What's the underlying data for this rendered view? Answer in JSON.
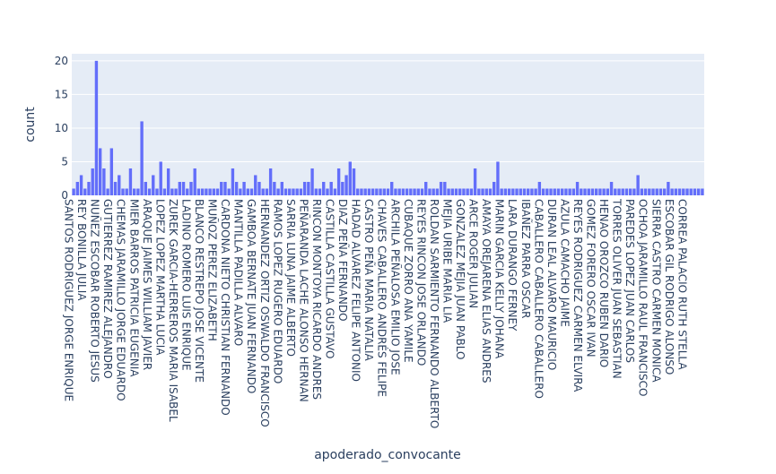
{
  "chart_data": {
    "type": "bar",
    "xlabel": "apoderado_convocante",
    "ylabel": "count",
    "ylim": [
      0,
      21.05
    ],
    "yticks": [
      0,
      5,
      10,
      15,
      20
    ],
    "grid": true,
    "bar_color": "#636efa",
    "plot_bg": "#e5ecf6",
    "tick_labels": [
      "SANTOS  RODRIGUEZ JORGE ENRIQUE",
      "REY BONILLA JULIA",
      "NUÑEZ ESCOBAR ROBERTO JESUS",
      "GUTIERREZ RAMIREZ ALEJANDRO",
      "CHEMAS JARAMILLO JORGE EDUARDO",
      "MIER BARROS PATRICIA EUGENIA",
      "ARAQUE JAIMES WILLIAM JAVIER",
      "LOPEZ LOPEZ MARTHA LUCIA",
      "ZUREK GARCIA-HERREROS MARIA ISABEL",
      "LADINO ROMERO LUIS ENRIQUE",
      "BLANCO RESTREPO JOSE VICENTE",
      "MUÑOZ PEREZ ELIZABETH",
      "CARDONA NIETO CHRISTIAN FERNANDO",
      "MANTILLA PADILLA ALVARO",
      "GAMBOA BERNATE JUAN FERNANDO",
      "HERNANDEZ ORTIZ OSWALDO FRANCISCO",
      "RAMOS LOPEZ RUGERO EDUARDO",
      "SARRIA LUNA JAIME ALBERTO",
      "PEÑARANDA LACHE ALONSO HERNAN",
      "RINCON MONTOYA RICARDO ANDRES",
      "CASTILLA CASTILLA GUSTAVO",
      "DIAZ PEÑA FERNANDO",
      "HADAD ALVAREZ FELIPE ANTONIO",
      "CASTRO PEÑA MARIA NATALIA",
      "CHAVES CABALLERO  ANDRÉS FELIPE",
      "ARCHILA PEÑALOSA EMILIO JOSE",
      "CUBAQUE ZORRO ANA YAMILE",
      "REYES RINCON JOSE ORLANDO",
      "ROLDAN SARMIENTO FERNANDO ALBERTO",
      "MEJIA URIBE MARIA LIA",
      "GONZALEZ MEJIA JUAN PABLO",
      "ARCE ROGER JULIAN",
      "AMAYA OREJARENA ELIAS ANDRES",
      "MARIN GARCIA KELLY JOHANA",
      "LARA DURANGO FERNEY",
      "IBAÑEZ PARRA OSCAR",
      "CABALLERO  CABALLERO  CABALLERO",
      "DURAN LEAL ALVARO MAURICIO",
      "AZULA CAMACHO JAIME",
      "REYES RODRIGUEZ CARMEN ELVIRA",
      "GOMEZ FORERO OSCAR IVAN",
      "HENAO OROZCO RUBEN DARIO",
      "TORRES OLIVER JUAN SEBASTIAN",
      "PAREDES LOPEZ JUAN CARLOS",
      "OCHOA JARAMILLO RAUL FRANCISCO",
      "SIERRA CASTRO CARMEN MONICA",
      "ESCOBAR GIL RODRIGO ALONSO",
      "CORREA PALACIO RUTH STELLA"
    ],
    "values": [
      1,
      2,
      3,
      1,
      2,
      4,
      20,
      7,
      4,
      1,
      7,
      2,
      3,
      1,
      1,
      4,
      1,
      1,
      11,
      2,
      1,
      3,
      1,
      5,
      1,
      4,
      1,
      1,
      2,
      2,
      1,
      2,
      4,
      1,
      1,
      1,
      1,
      1,
      1,
      2,
      2,
      1,
      4,
      2,
      1,
      2,
      1,
      1,
      3,
      2,
      1,
      1,
      4,
      2,
      1,
      2,
      1,
      1,
      1,
      1,
      1,
      2,
      2,
      4,
      1,
      1,
      2,
      1,
      2,
      1,
      4,
      2,
      3,
      5,
      4,
      1,
      1,
      1,
      1,
      1,
      1,
      1,
      1,
      1,
      2,
      1,
      1,
      1,
      1,
      1,
      1,
      1,
      1,
      2,
      1,
      1,
      1,
      2,
      2,
      1,
      1,
      1,
      1,
      1,
      1,
      1,
      4,
      1,
      1,
      1,
      1,
      2,
      5,
      1,
      1,
      1,
      1,
      1,
      1,
      1,
      1,
      1,
      1,
      2,
      1,
      1,
      1,
      1,
      1,
      1,
      1,
      1,
      1,
      2,
      1,
      1,
      1,
      1,
      1,
      1,
      1,
      1,
      2,
      1,
      1,
      1,
      1,
      1,
      1,
      3,
      1,
      1,
      1,
      1,
      1,
      1,
      1,
      2,
      1,
      1,
      1,
      1,
      1,
      1,
      1,
      1,
      1
    ]
  }
}
